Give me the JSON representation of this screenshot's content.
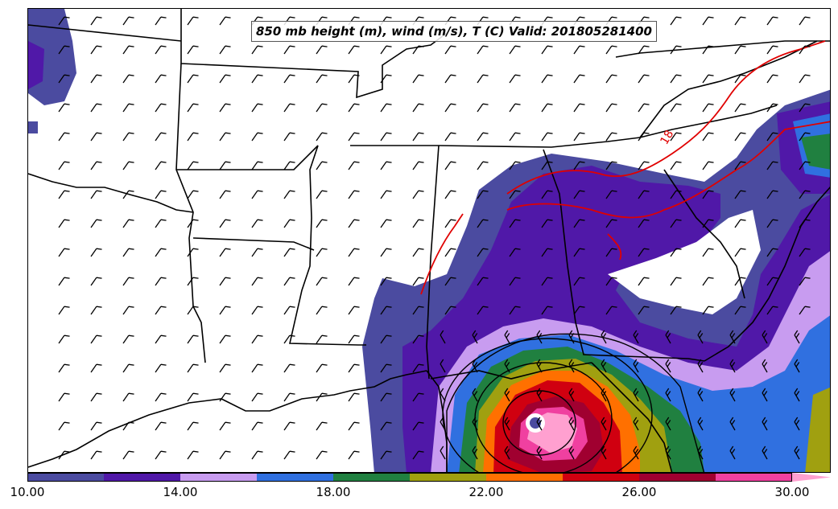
{
  "title": "850 mb height (m), wind (m/s), T (C) Valid: 201805281400",
  "contour_label": "18",
  "colorbar": {
    "colors": [
      "#4b4ba0",
      "#5018a8",
      "#c89cf0",
      "#3070e0",
      "#208040",
      "#a0a010",
      "#ff7000",
      "#d00010",
      "#a00030",
      "#f040a0",
      "#ffa0d0"
    ],
    "ticks": [
      "10.00",
      "14.00",
      "18.00",
      "22.00",
      "26.00",
      "30.00"
    ]
  },
  "colors": {
    "isotherm": "#e00000",
    "boundaries": "#000000"
  }
}
